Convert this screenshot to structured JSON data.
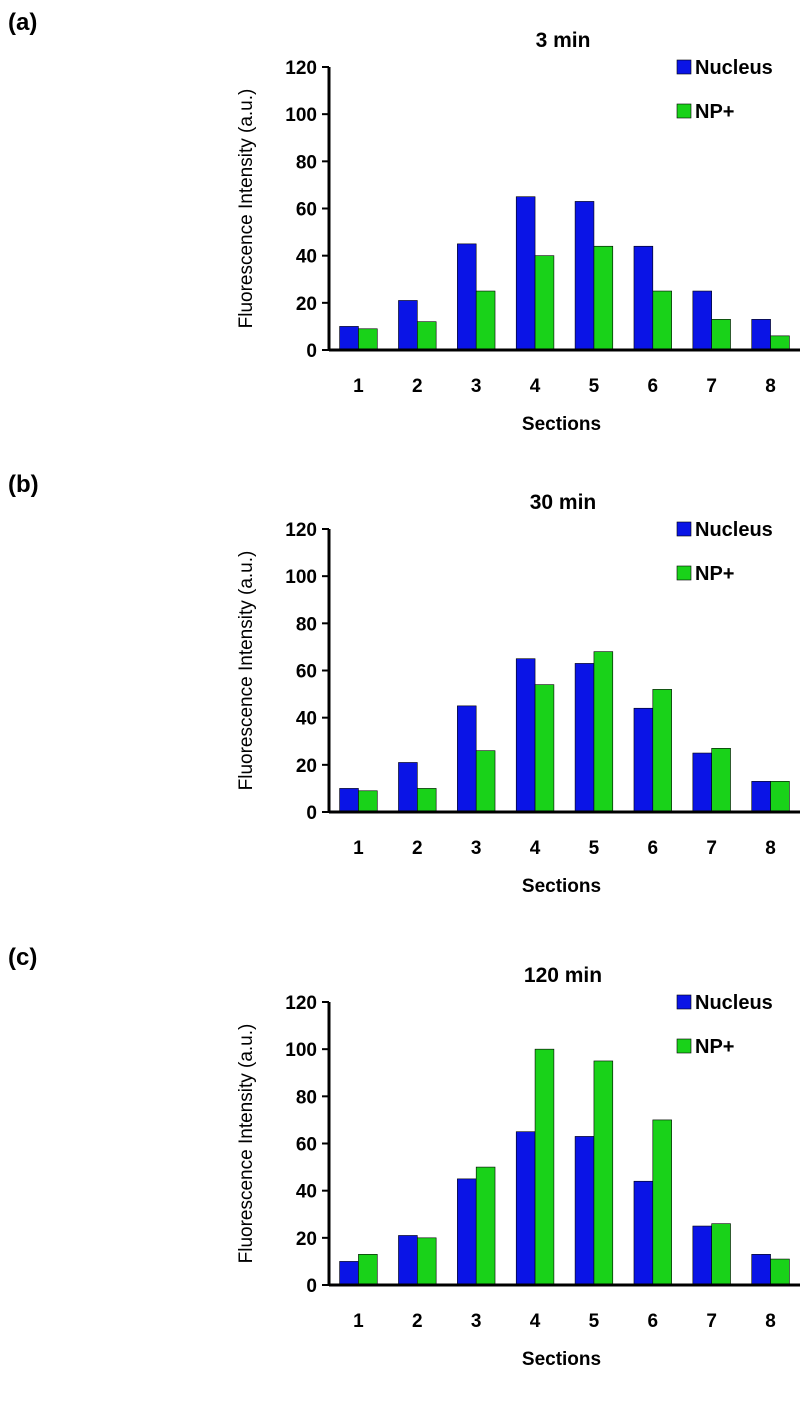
{
  "figure": {
    "panels": [
      {
        "label": "(a)"
      },
      {
        "label": "(b)"
      },
      {
        "label": "(c)"
      }
    ]
  },
  "colors": {
    "nucleus": "#0a14e6",
    "np_plus": "#19d219",
    "axis": "#000000"
  },
  "chart_data": [
    {
      "type": "bar",
      "title": "3 min",
      "xlabel": "Sections",
      "ylabel": "Fluorescence Intensity (a.u.)",
      "categories": [
        "1",
        "2",
        "3",
        "4",
        "5",
        "6",
        "7",
        "8"
      ],
      "ylim": [
        0,
        120
      ],
      "yticks": [
        0,
        20,
        40,
        60,
        80,
        100,
        120
      ],
      "legend_position": "top-right",
      "grid": false,
      "series": [
        {
          "name": "Nucleus",
          "values": [
            10,
            21,
            45,
            65,
            63,
            44,
            25,
            13
          ]
        },
        {
          "name": "NP+",
          "values": [
            9,
            12,
            25,
            40,
            44,
            25,
            13,
            6
          ]
        }
      ]
    },
    {
      "type": "bar",
      "title": "30 min",
      "xlabel": "Sections",
      "ylabel": "Fluorescence Intensity (a.u.)",
      "categories": [
        "1",
        "2",
        "3",
        "4",
        "5",
        "6",
        "7",
        "8"
      ],
      "ylim": [
        0,
        120
      ],
      "yticks": [
        0,
        20,
        40,
        60,
        80,
        100,
        120
      ],
      "legend_position": "top-right",
      "grid": false,
      "series": [
        {
          "name": "Nucleus",
          "values": [
            10,
            21,
            45,
            65,
            63,
            44,
            25,
            13
          ]
        },
        {
          "name": "NP+",
          "values": [
            9,
            10,
            26,
            54,
            68,
            52,
            27,
            13
          ]
        }
      ]
    },
    {
      "type": "bar",
      "title": "120 min",
      "xlabel": "Sections",
      "ylabel": "Fluorescence Intensity (a.u.)",
      "categories": [
        "1",
        "2",
        "3",
        "4",
        "5",
        "6",
        "7",
        "8"
      ],
      "ylim": [
        0,
        120
      ],
      "yticks": [
        0,
        20,
        40,
        60,
        80,
        100,
        120
      ],
      "legend_position": "top-right",
      "grid": false,
      "series": [
        {
          "name": "Nucleus",
          "values": [
            10,
            21,
            45,
            65,
            63,
            44,
            25,
            13
          ]
        },
        {
          "name": "NP+",
          "values": [
            13,
            20,
            50,
            100,
            95,
            70,
            26,
            11
          ]
        }
      ]
    }
  ]
}
